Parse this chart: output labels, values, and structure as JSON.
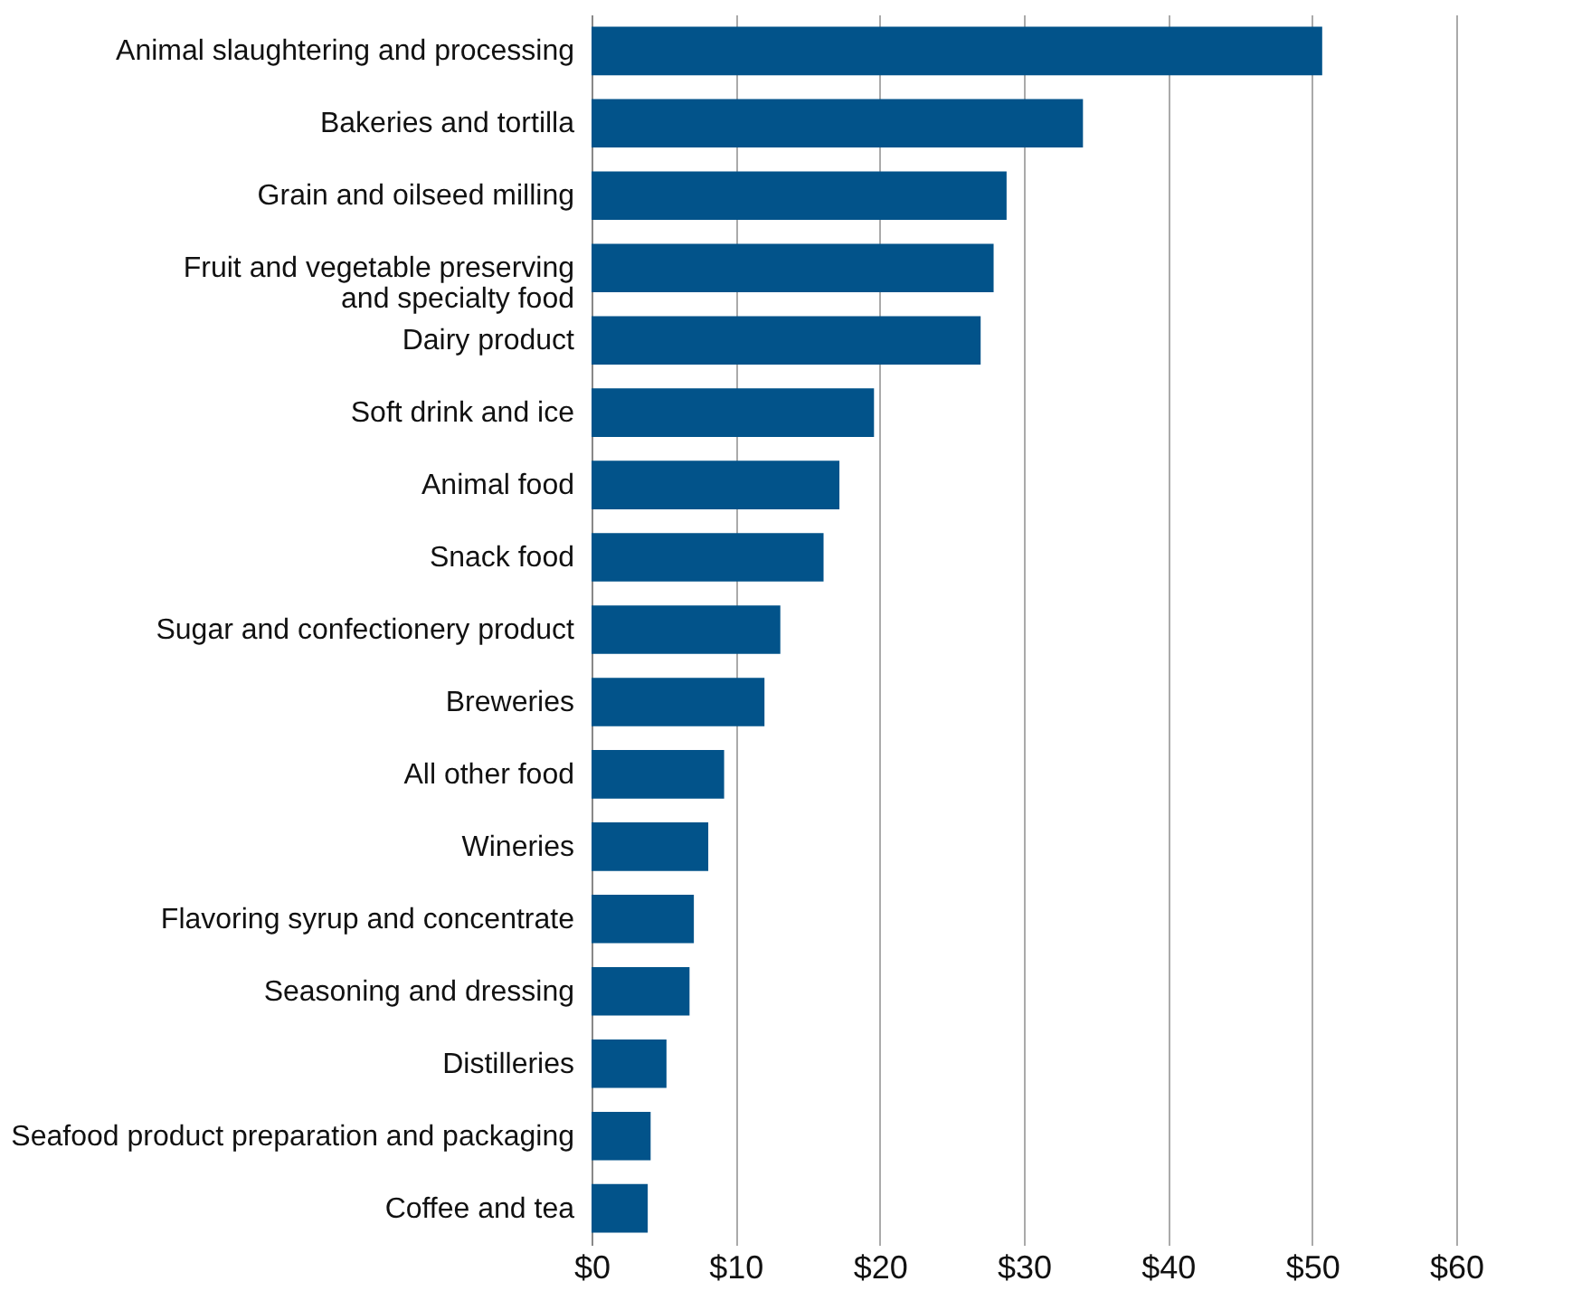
{
  "chart_data": {
    "type": "bar",
    "orientation": "horizontal",
    "color": "#02538a",
    "categories": [
      "Animal  slaughtering and processing",
      "Bakeries and tortilla",
      "Grain and oilseed milling",
      "Fruit and vegetable preserving\nand specialty food",
      "Dairy product",
      "Soft drink and ice",
      "Animal food",
      "Snack food",
      "Sugar and confectionery product",
      "Breweries",
      "All other food",
      "Wineries",
      "Flavoring syrup and concentrate",
      "Seasoning and dressing",
      "Distilleries",
      "Seafood product preparation and packaging",
      "Coffee and tea"
    ],
    "values": [
      50.7,
      34.1,
      28.8,
      27.9,
      27.0,
      19.6,
      17.2,
      16.1,
      13.1,
      12.0,
      9.2,
      8.1,
      7.1,
      6.8,
      5.2,
      4.1,
      3.9
    ],
    "xlim": [
      0,
      60
    ],
    "xticks": [
      {
        "value": 0,
        "label": "$0"
      },
      {
        "value": 10,
        "label": "$10"
      },
      {
        "value": 20,
        "label": "$20"
      },
      {
        "value": 30,
        "label": "$30"
      },
      {
        "value": 40,
        "label": "$40"
      },
      {
        "value": 50,
        "label": "$50"
      },
      {
        "value": 60,
        "label": "$60"
      }
    ],
    "grid": "x"
  }
}
